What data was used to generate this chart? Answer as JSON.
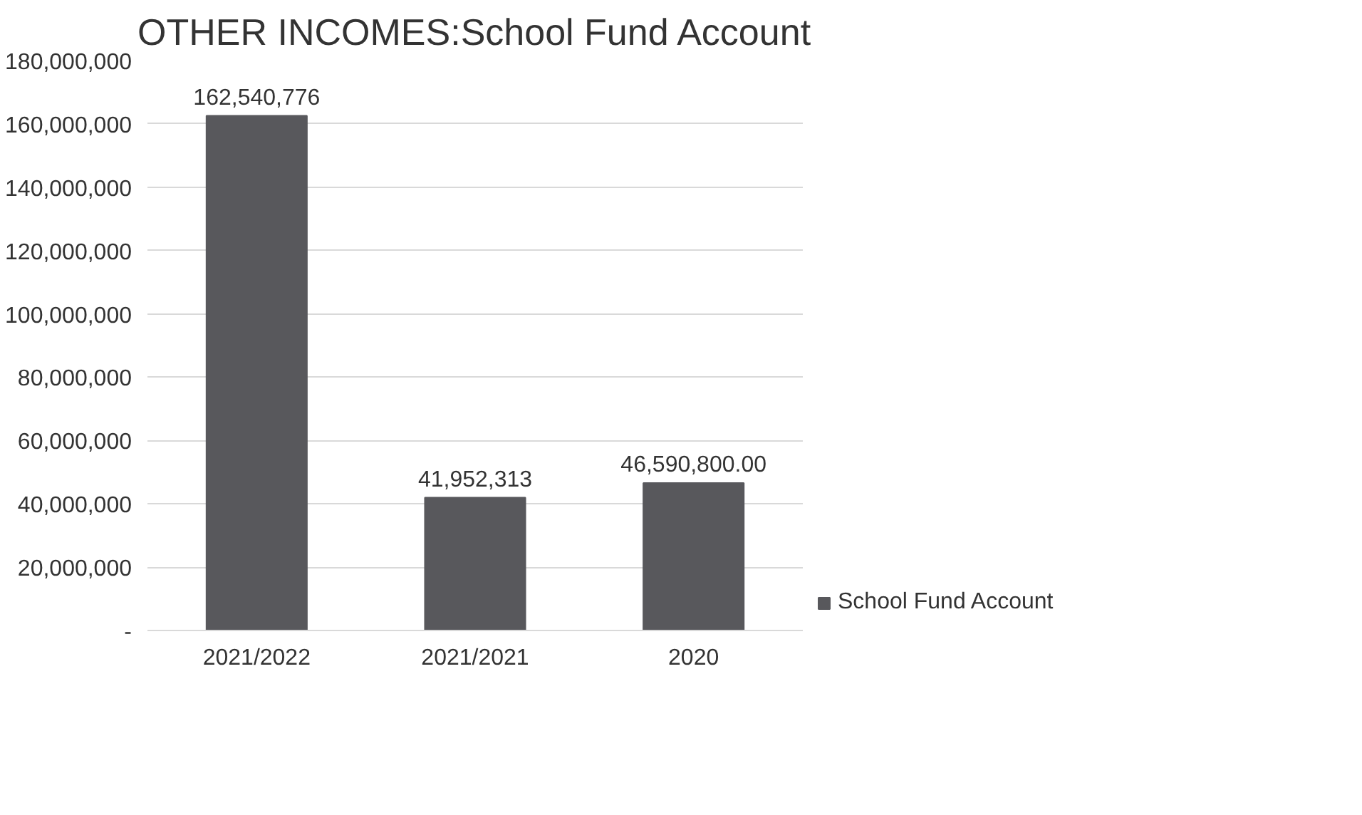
{
  "chart_data": {
    "type": "bar",
    "title": "OTHER INCOMES:School Fund Account",
    "categories": [
      "2021/2022",
      "2021/2021",
      "2020"
    ],
    "series": [
      {
        "name": "School Fund Account",
        "color": "#58585c",
        "values": [
          162540776,
          41952313,
          46590800
        ],
        "value_labels": [
          "162,540,776",
          "41,952,313",
          "46,590,800.00"
        ]
      }
    ],
    "ylim": [
      0,
      180000000
    ],
    "yticks": [
      {
        "value": 0,
        "label": "-"
      },
      {
        "value": 20000000,
        "label": "20,000,000"
      },
      {
        "value": 40000000,
        "label": "40,000,000"
      },
      {
        "value": 60000000,
        "label": "60,000,000"
      },
      {
        "value": 80000000,
        "label": "80,000,000"
      },
      {
        "value": 100000000,
        "label": "100,000,000"
      },
      {
        "value": 120000000,
        "label": "120,000,000"
      },
      {
        "value": 140000000,
        "label": "140,000,000"
      },
      {
        "value": 160000000,
        "label": "160,000,000"
      },
      {
        "value": 180000000,
        "label": "180,000,000"
      }
    ],
    "grid": "y",
    "legend": "right"
  }
}
